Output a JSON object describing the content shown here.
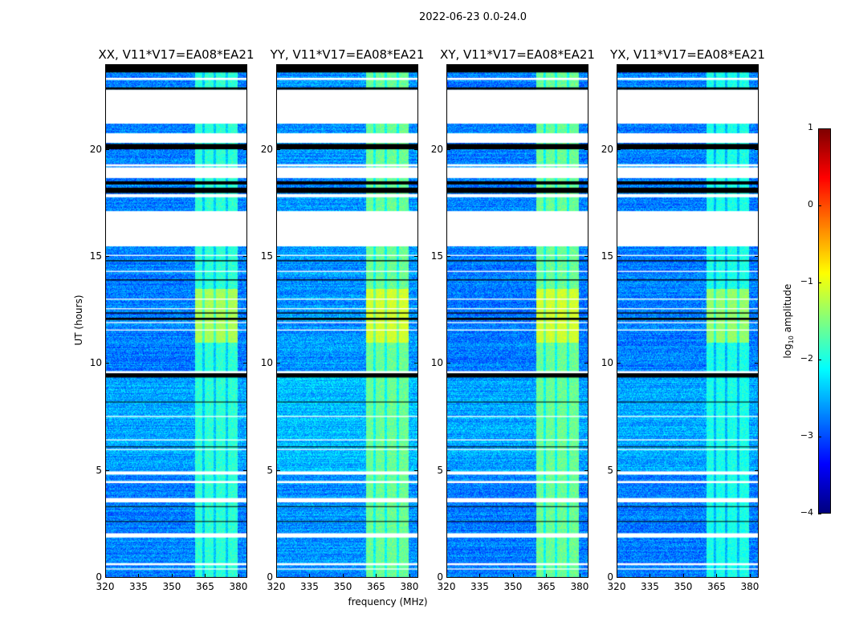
{
  "chart_data": {
    "type": "heatmap",
    "title": "2022-06-23 0.0-24.0",
    "xlabel": "frequency (MHz)",
    "ylabel": "UT (hours)",
    "xlim": [
      320,
      384
    ],
    "ylim": [
      0,
      24
    ],
    "x_ticks": [
      "320",
      "335",
      "350",
      "365",
      "380"
    ],
    "x_tick_values": [
      320,
      335,
      350,
      365,
      380
    ],
    "y_ticks": [
      "0",
      "5",
      "10",
      "15",
      "20"
    ],
    "y_tick_values": [
      0,
      5,
      10,
      15,
      20
    ],
    "panels": [
      {
        "title": "XX, V11*V17=EA08*EA21",
        "background_level": -2.75,
        "rfi_level": -1.9,
        "peak_level": -1.3
      },
      {
        "title": "YY, V11*V17=EA08*EA21",
        "background_level": -2.65,
        "rfi_level": -1.6,
        "peak_level": -1.1
      },
      {
        "title": "XY, V11*V17=EA08*EA21",
        "background_level": -2.75,
        "rfi_level": -1.6,
        "peak_level": -1.1
      },
      {
        "title": "YX, V11*V17=EA08*EA21",
        "background_level": -2.75,
        "rfi_level": -2.0,
        "peak_level": -1.4
      }
    ],
    "rfi_band_mhz": [
      360.5,
      380
    ],
    "rfi_dark_channels_mhz": [
      364.5,
      369.5,
      375
    ],
    "peak_interval_hours": [
      11,
      13.5
    ],
    "flagged_white_hours": [
      [
        21.25,
        22.85
      ],
      [
        20.35,
        20.8
      ],
      [
        15.5,
        17.15
      ],
      [
        18.7,
        19.2
      ],
      [
        17.8,
        17.95
      ],
      [
        19.25,
        19.35
      ],
      [
        23.3,
        23.4
      ],
      [
        9.55,
        9.65
      ],
      [
        7.5,
        7.55
      ],
      [
        6.4,
        6.45
      ],
      [
        4.8,
        4.95
      ],
      [
        4.4,
        4.5
      ],
      [
        3.5,
        3.7
      ],
      [
        1.85,
        2.05
      ],
      [
        0.55,
        0.65
      ],
      [
        0.35,
        0.4
      ],
      [
        15.05,
        15.1
      ],
      [
        14.3,
        14.35
      ],
      [
        13.0,
        13.05
      ],
      [
        11.9,
        11.95
      ],
      [
        12.55,
        12.6
      ],
      [
        11.55,
        11.6
      ],
      [
        5.95,
        6.0
      ]
    ],
    "flagged_black_hours": [
      [
        23.65,
        24
      ],
      [
        22.85,
        22.95
      ],
      [
        20.05,
        20.3
      ],
      [
        18.0,
        18.25
      ],
      [
        18.4,
        18.55
      ],
      [
        9.35,
        9.55
      ],
      [
        12.05,
        12.15
      ],
      [
        12.35,
        12.4
      ],
      [
        13.9,
        13.95
      ],
      [
        14.8,
        14.85
      ],
      [
        6.1,
        6.12
      ],
      [
        8.2,
        8.22
      ],
      [
        2.6,
        2.62
      ],
      [
        3.3,
        3.32
      ]
    ],
    "colorbar": {
      "label": "log10 amplitude",
      "label_main": "log",
      "label_sub": "10",
      "label_rest": " amplitude",
      "range": [
        -4,
        1
      ],
      "ticks": [
        "1",
        "0",
        "−1",
        "−2",
        "−3",
        "−4"
      ],
      "tick_values": [
        1,
        0,
        -1,
        -2,
        -3,
        -4
      ],
      "colormap": "jet"
    }
  }
}
